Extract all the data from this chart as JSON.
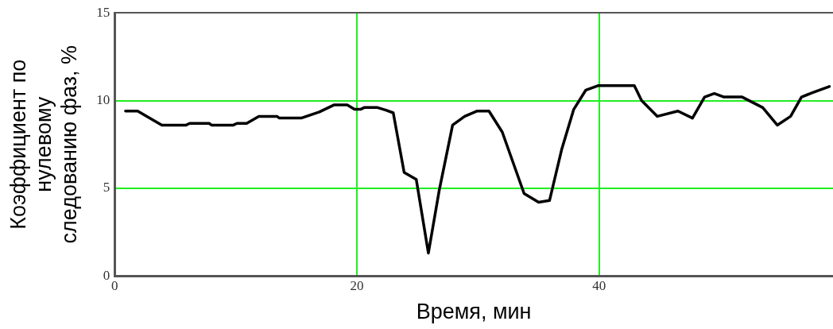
{
  "chart_data": {
    "type": "line",
    "xlabel": "Время, мин",
    "ylabel": "Коэффициент по\nнулевому\nследованию фаз, %",
    "xlim": [
      0,
      59.3
    ],
    "xticks": [
      0,
      20,
      40
    ],
    "ylim": [
      0,
      15
    ],
    "yticks": [
      0,
      5,
      10,
      15
    ],
    "grid": true,
    "legend": false,
    "marker": "none",
    "line_style": "solid",
    "series": [
      {
        "color": "#000000",
        "x": [
          0.9,
          1.9,
          3.9,
          5.9,
          6.2,
          7.8,
          8.0,
          9.8,
          10.1,
          10.9,
          11.9,
          13.4,
          13.6,
          15.4,
          16.9,
          18.1,
          19.2,
          19.8,
          20.3,
          20.6,
          21.7,
          22.4,
          23.0,
          23.9,
          24.9,
          25.9,
          26.8,
          27.9,
          28.9,
          29.9,
          30.9,
          32.0,
          33.8,
          35.0,
          35.9,
          36.9,
          37.9,
          38.9,
          39.9,
          42.9,
          43.5,
          44.8,
          46.5,
          47.7,
          48.7,
          49.5,
          50.3,
          51.8,
          53.5,
          54.7,
          55.8,
          56.7,
          57.6,
          59.0
        ],
        "values": [
          9.4,
          9.4,
          8.6,
          8.6,
          8.7,
          8.7,
          8.6,
          8.6,
          8.7,
          8.7,
          9.1,
          9.1,
          9.0,
          9.0,
          9.35,
          9.75,
          9.75,
          9.5,
          9.5,
          9.6,
          9.6,
          9.45,
          9.3,
          5.9,
          5.5,
          1.3,
          4.9,
          8.6,
          9.1,
          9.4,
          9.4,
          8.2,
          4.7,
          4.2,
          4.3,
          7.2,
          9.5,
          10.6,
          10.85,
          10.85,
          10.0,
          9.1,
          9.4,
          9.0,
          10.2,
          10.4,
          10.2,
          10.2,
          9.6,
          8.6,
          9.1,
          10.2,
          10.45,
          10.8
        ]
      }
    ]
  }
}
